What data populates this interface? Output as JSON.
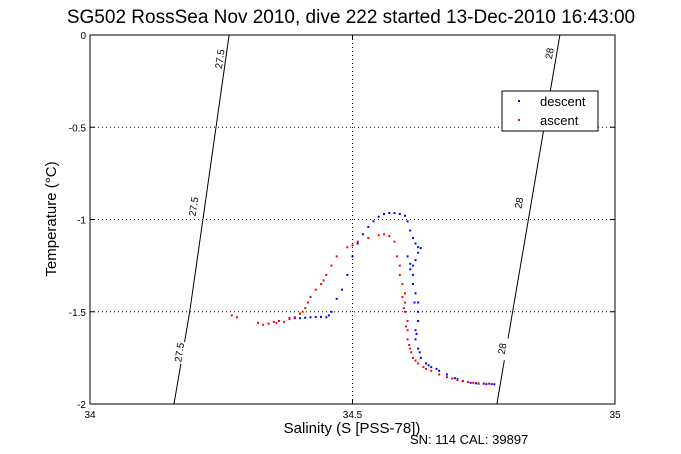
{
  "chart_data": {
    "type": "scatter",
    "title": "SG502 RossSea Nov 2010, dive 222 started 13-Dec-2010 16:43:00",
    "xlabel": "Salinity (S [PSS-78])",
    "ylabel": "Temperature (°C)",
    "xlim": [
      34,
      35
    ],
    "ylim": [
      -2,
      0
    ],
    "xticks": [
      34,
      34.5,
      35
    ],
    "yticks": [
      0,
      -0.5,
      -1,
      -1.5,
      -2
    ],
    "xtick_labels": [
      "34",
      "34.5",
      "35"
    ],
    "ytick_labels": [
      "0",
      "-0.5",
      "-1",
      "-1.5",
      "-2"
    ],
    "grid": true,
    "legend_position": "top-right",
    "footer": "SN: 114  CAL: 39897",
    "density_contours": [
      {
        "label": "27.5",
        "points": [
          [
            34.16,
            -2.0
          ],
          [
            34.19,
            -1.5
          ],
          [
            34.215,
            -1.0
          ],
          [
            34.24,
            -0.5
          ],
          [
            34.265,
            0.0
          ]
        ],
        "label_positions": [
          [
            34.17,
            -1.72
          ],
          [
            34.197,
            -0.93
          ],
          [
            34.247,
            -0.13
          ]
        ]
      },
      {
        "label": "28",
        "points": [
          [
            34.775,
            -2.0
          ],
          [
            34.805,
            -1.5
          ],
          [
            34.835,
            -1.0
          ],
          [
            34.865,
            -0.5
          ],
          [
            34.895,
            0.0
          ]
        ],
        "label_positions": [
          [
            34.785,
            -1.7
          ],
          [
            34.817,
            -0.91
          ],
          [
            34.875,
            -0.1
          ]
        ]
      }
    ],
    "series": [
      {
        "name": "descent",
        "color": "#0000ff",
        "points": [
          [
            34.38,
            -1.535
          ],
          [
            34.39,
            -1.535
          ],
          [
            34.4,
            -1.535
          ],
          [
            34.41,
            -1.532
          ],
          [
            34.42,
            -1.53
          ],
          [
            34.43,
            -1.528
          ],
          [
            34.44,
            -1.528
          ],
          [
            34.45,
            -1.53
          ],
          [
            34.455,
            -1.52
          ],
          [
            34.46,
            -1.5
          ],
          [
            34.47,
            -1.43
          ],
          [
            34.48,
            -1.38
          ],
          [
            34.49,
            -1.3
          ],
          [
            34.5,
            -1.2
          ],
          [
            34.51,
            -1.13
          ],
          [
            34.52,
            -1.08
          ],
          [
            34.53,
            -1.04
          ],
          [
            34.54,
            -1.01
          ],
          [
            34.55,
            -0.985
          ],
          [
            34.56,
            -0.97
          ],
          [
            34.57,
            -0.965
          ],
          [
            34.58,
            -0.965
          ],
          [
            34.59,
            -0.97
          ],
          [
            34.6,
            -0.98
          ],
          [
            34.605,
            -1.01
          ],
          [
            34.61,
            -1.06
          ],
          [
            34.615,
            -1.1
          ],
          [
            34.62,
            -1.13
          ],
          [
            34.625,
            -1.15
          ],
          [
            34.63,
            -1.155
          ],
          [
            34.625,
            -1.18
          ],
          [
            34.62,
            -1.22
          ],
          [
            34.615,
            -1.25
          ],
          [
            34.61,
            -1.27
          ],
          [
            34.615,
            -1.3
          ],
          [
            34.615,
            -1.35
          ],
          [
            34.62,
            -1.4
          ],
          [
            34.625,
            -1.45
          ],
          [
            34.625,
            -1.5
          ],
          [
            34.625,
            -1.55
          ],
          [
            34.62,
            -1.6
          ],
          [
            34.62,
            -1.65
          ],
          [
            34.625,
            -1.7
          ],
          [
            34.63,
            -1.75
          ],
          [
            34.64,
            -1.78
          ],
          [
            34.65,
            -1.8
          ],
          [
            34.665,
            -1.82
          ],
          [
            34.68,
            -1.84
          ],
          [
            34.695,
            -1.86
          ],
          [
            34.71,
            -1.875
          ],
          [
            34.725,
            -1.885
          ],
          [
            34.74,
            -1.89
          ],
          [
            34.755,
            -1.892
          ],
          [
            34.765,
            -1.892
          ],
          [
            34.77,
            -1.893
          ],
          [
            34.605,
            -1.2
          ],
          [
            34.61,
            -1.24
          ],
          [
            34.618,
            -1.45
          ],
          [
            34.622,
            -1.62
          ],
          [
            34.628,
            -1.72
          ],
          [
            34.645,
            -1.79
          ],
          [
            34.66,
            -1.81
          ],
          [
            34.7,
            -1.865
          ],
          [
            34.735,
            -1.888
          ],
          [
            34.75,
            -1.89
          ]
        ]
      },
      {
        "name": "ascent",
        "color": "#ff0000",
        "points": [
          [
            34.27,
            -1.52
          ],
          [
            34.28,
            -1.53
          ],
          [
            34.32,
            -1.56
          ],
          [
            34.33,
            -1.57
          ],
          [
            34.34,
            -1.565
          ],
          [
            34.35,
            -1.555
          ],
          [
            34.36,
            -1.55
          ],
          [
            34.37,
            -1.555
          ],
          [
            34.38,
            -1.54
          ],
          [
            34.39,
            -1.53
          ],
          [
            34.4,
            -1.51
          ],
          [
            34.41,
            -1.48
          ],
          [
            34.415,
            -1.45
          ],
          [
            34.42,
            -1.42
          ],
          [
            34.43,
            -1.38
          ],
          [
            34.44,
            -1.35
          ],
          [
            34.45,
            -1.3
          ],
          [
            34.46,
            -1.25
          ],
          [
            34.47,
            -1.2
          ],
          [
            34.49,
            -1.15
          ],
          [
            34.51,
            -1.12
          ],
          [
            34.53,
            -1.1
          ],
          [
            34.55,
            -1.085
          ],
          [
            34.56,
            -1.08
          ],
          [
            34.57,
            -1.09
          ],
          [
            34.58,
            -1.12
          ],
          [
            34.585,
            -1.2
          ],
          [
            34.59,
            -1.25
          ],
          [
            34.59,
            -1.3
          ],
          [
            34.595,
            -1.35
          ],
          [
            34.6,
            -1.4
          ],
          [
            34.6,
            -1.45
          ],
          [
            34.6,
            -1.5
          ],
          [
            34.605,
            -1.55
          ],
          [
            34.605,
            -1.6
          ],
          [
            34.605,
            -1.65
          ],
          [
            34.61,
            -1.7
          ],
          [
            34.615,
            -1.75
          ],
          [
            34.625,
            -1.78
          ],
          [
            34.635,
            -1.8
          ],
          [
            34.65,
            -1.82
          ],
          [
            34.665,
            -1.84
          ],
          [
            34.68,
            -1.855
          ],
          [
            34.7,
            -1.87
          ],
          [
            34.72,
            -1.88
          ],
          [
            34.74,
            -1.888
          ],
          [
            34.76,
            -1.89
          ],
          [
            34.595,
            -1.42
          ],
          [
            34.598,
            -1.48
          ],
          [
            34.602,
            -1.58
          ],
          [
            34.608,
            -1.68
          ],
          [
            34.612,
            -1.72
          ],
          [
            34.62,
            -1.765
          ],
          [
            34.64,
            -1.81
          ],
          [
            34.69,
            -1.862
          ],
          [
            34.71,
            -1.876
          ],
          [
            34.73,
            -1.885
          ],
          [
            34.75,
            -1.889
          ],
          [
            34.5,
            -1.14
          ],
          [
            34.445,
            -1.33
          ],
          [
            34.405,
            -1.5
          ],
          [
            34.355,
            -1.56
          ]
        ]
      }
    ]
  }
}
